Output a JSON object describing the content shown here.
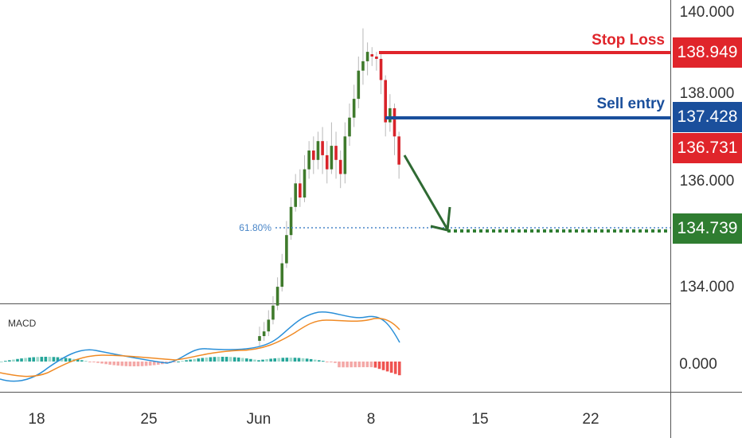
{
  "chart_data": {
    "type": "candlestick",
    "y_axis": {
      "ticks": [
        "140.000",
        "138.000",
        "136.000",
        "134.000"
      ],
      "ylim": [
        132.9,
        140.3
      ]
    },
    "x_axis": {
      "ticks": [
        "18",
        "25",
        "Jun",
        "8",
        "15",
        "22"
      ]
    },
    "annotations": {
      "stop_loss": {
        "label": "Stop Loss",
        "value": "138.949",
        "price": 138.949
      },
      "sell_entry": {
        "label": "Sell entry",
        "value": "137.428",
        "price": 137.428
      },
      "current_price": {
        "value": "136.731",
        "price": 136.731
      },
      "target": {
        "value": "134.739",
        "price": 134.739
      },
      "fib_level": {
        "label": "61.80%",
        "price": 134.8
      }
    },
    "candles": [
      [
        132.95,
        133.05,
        133.25,
        132.85
      ],
      [
        133.05,
        133.15,
        133.35,
        132.95
      ],
      [
        133.15,
        133.4,
        133.6,
        133.05
      ],
      [
        133.4,
        133.7,
        133.9,
        133.3
      ],
      [
        133.7,
        134.1,
        134.3,
        133.6
      ],
      [
        134.1,
        134.6,
        134.8,
        134.0
      ],
      [
        134.6,
        135.2,
        135.5,
        134.5
      ],
      [
        135.2,
        135.8,
        136.0,
        135.1
      ],
      [
        135.8,
        136.3,
        136.5,
        135.7
      ],
      [
        136.3,
        136.0,
        136.6,
        135.8
      ],
      [
        136.0,
        136.6,
        136.9,
        135.9
      ],
      [
        136.6,
        137.0,
        137.2,
        136.4
      ],
      [
        137.0,
        136.8,
        137.3,
        136.5
      ],
      [
        136.8,
        137.2,
        137.4,
        136.6
      ],
      [
        137.2,
        136.9,
        137.5,
        136.5
      ],
      [
        136.9,
        136.6,
        137.2,
        136.3
      ],
      [
        136.6,
        137.1,
        137.6,
        136.5
      ],
      [
        137.1,
        136.8,
        137.4,
        136.4
      ],
      [
        136.8,
        136.5,
        137.0,
        136.2
      ],
      [
        136.5,
        137.3,
        137.6,
        136.3
      ],
      [
        137.3,
        137.7,
        138.0,
        137.1
      ],
      [
        137.7,
        138.1,
        138.4,
        137.5
      ],
      [
        138.1,
        138.7,
        139.0,
        137.9
      ],
      [
        138.7,
        138.9,
        139.6,
        138.4
      ],
      [
        138.9,
        139.1,
        139.3,
        138.6
      ],
      [
        139.05,
        139.0,
        139.2,
        138.8
      ],
      [
        139.0,
        138.95,
        139.1,
        138.7
      ],
      [
        138.95,
        138.5,
        139.05,
        138.2
      ],
      [
        138.5,
        137.6,
        138.6,
        137.3
      ],
      [
        137.6,
        137.9,
        138.2,
        137.4
      ],
      [
        137.9,
        137.3,
        138.0,
        136.9
      ],
      [
        137.3,
        136.7,
        137.4,
        136.4
      ]
    ],
    "macd": {
      "label": "MACD",
      "y_tick": "0.000"
    }
  }
}
